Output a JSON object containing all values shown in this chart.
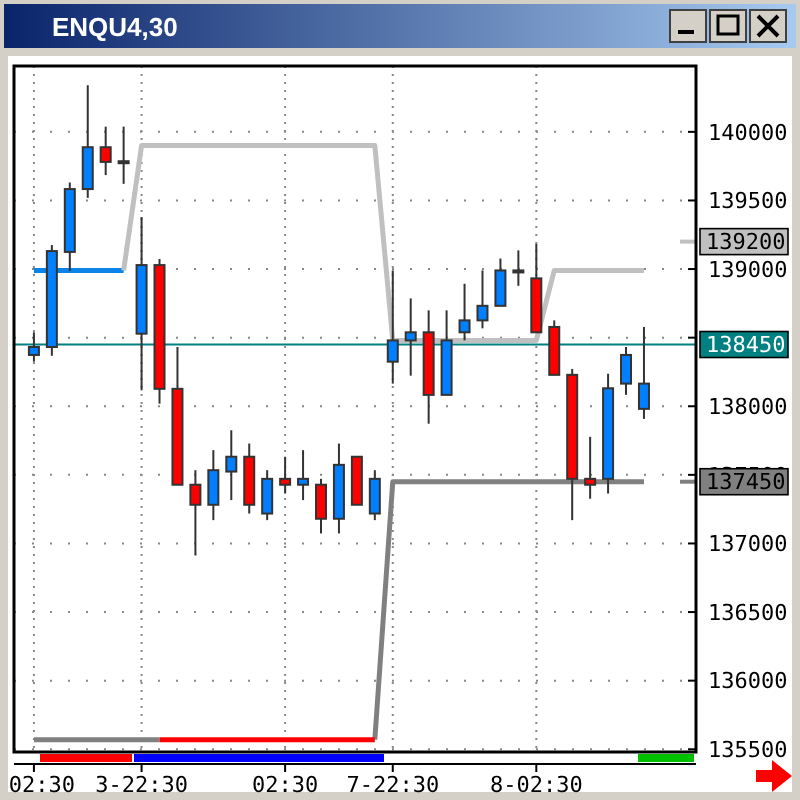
{
  "chart_data": {
    "type": "candlestick",
    "title": "ENQU4,30",
    "categories": [
      "02:30",
      null,
      null,
      null,
      null,
      null,
      "3-22:30",
      null,
      null,
      null,
      null,
      null,
      null,
      null,
      "02:30",
      null,
      null,
      null,
      null,
      null,
      "7-22:30",
      null,
      null,
      null,
      null,
      null,
      null,
      null,
      "8-02:30",
      null,
      null,
      null,
      null,
      null,
      null
    ],
    "ohlc": [
      [
        138374,
        138539,
        138325,
        138432
      ],
      [
        138432,
        139175,
        138368,
        139131
      ],
      [
        139125,
        139631,
        138986,
        139583
      ],
      [
        139583,
        140340,
        139519,
        139888
      ],
      [
        139888,
        140038,
        139685,
        139781
      ],
      [
        139786,
        140038,
        139621,
        139786
      ],
      [
        138529,
        139379,
        138116,
        139029
      ],
      [
        139029,
        139073,
        138019,
        138127
      ],
      [
        138127,
        138432,
        137428,
        137428
      ],
      [
        137428,
        137534,
        136912,
        137282
      ],
      [
        137282,
        137680,
        137170,
        137534
      ],
      [
        137524,
        137825,
        137316,
        137632
      ],
      [
        137632,
        137728,
        137218,
        137282
      ],
      [
        137218,
        137534,
        137170,
        137471
      ],
      [
        137471,
        137632,
        137364,
        137428
      ],
      [
        137428,
        137680,
        137316,
        137471
      ],
      [
        137428,
        137471,
        137073,
        137180
      ],
      [
        137180,
        137728,
        137073,
        137573
      ],
      [
        137632,
        137632,
        137282,
        137282
      ],
      [
        137218,
        137534,
        137170,
        137471
      ],
      [
        138325,
        138990,
        138165,
        138480
      ],
      [
        138480,
        138786,
        138223,
        138539
      ],
      [
        138539,
        138699,
        137873,
        138083
      ],
      [
        138083,
        138699,
        138083,
        138480
      ],
      [
        138539,
        138893,
        138480,
        138626
      ],
      [
        138626,
        138990,
        138568,
        138732
      ],
      [
        138732,
        139077,
        138732,
        138990
      ],
      [
        138990,
        139136,
        138878,
        138990
      ],
      [
        138932,
        139184,
        138539,
        138539
      ],
      [
        138578,
        138626,
        138229,
        138229
      ],
      [
        138229,
        138272,
        137170,
        137471
      ],
      [
        137471,
        137777,
        137326,
        137428
      ],
      [
        137471,
        138237,
        137364,
        138131
      ],
      [
        138165,
        138432,
        138083,
        138374
      ],
      [
        137981,
        138578,
        137908,
        138165
      ]
    ],
    "colors": [
      "#0080ff",
      "#0080ff",
      "#0080ff",
      "#0080ff",
      "#ff0000",
      "#0080ff",
      "#0080ff",
      "#ff0000",
      "#ff0000",
      "#ff0000",
      "#0080ff",
      "#0080ff",
      "#ff0000",
      "#0080ff",
      "#ff0000",
      "#0080ff",
      "#ff0000",
      "#0080ff",
      "#ff0000",
      "#0080ff",
      "#0080ff",
      "#0080ff",
      "#ff0000",
      "#0080ff",
      "#0080ff",
      "#0080ff",
      "#0080ff",
      "#0080ff",
      "#ff0000",
      "#ff0000",
      "#ff0000",
      "#ff0000",
      "#0080ff",
      "#0080ff",
      "#0080ff"
    ],
    "series": [
      {
        "type": "line",
        "color": "#0a84e8",
        "values": [
          138990,
          138990,
          138990,
          138990,
          138990,
          138990,
          null,
          null,
          null,
          null,
          null,
          null,
          null,
          null,
          null,
          null,
          null,
          null,
          null,
          null,
          null,
          null,
          null,
          null,
          null,
          null,
          null,
          null,
          null,
          null,
          null,
          null,
          null,
          null,
          null
        ]
      },
      {
        "type": "line",
        "color": "#c0c0c0",
        "values": [
          null,
          null,
          null,
          null,
          null,
          138990,
          139900,
          139900,
          139900,
          139900,
          139900,
          139900,
          139900,
          139900,
          139900,
          139900,
          139900,
          139900,
          139900,
          139900,
          138480,
          138480,
          138480,
          138480,
          138480,
          138480,
          138480,
          138480,
          138480,
          138990,
          138990,
          138990,
          138990,
          138990,
          138990
        ]
      },
      {
        "type": "line",
        "color": "#808080",
        "values": [
          135570,
          135570,
          135570,
          135570,
          135570,
          135570,
          135570,
          135570,
          null,
          null,
          null,
          null,
          null,
          null,
          null,
          null,
          null,
          null,
          null,
          135570,
          137450,
          137450,
          137450,
          137450,
          137450,
          137450,
          137450,
          137450,
          137450,
          137450,
          137450,
          137450,
          137450,
          137450,
          137450
        ]
      },
      {
        "type": "line",
        "color": "#ff0000",
        "values": [
          null,
          null,
          null,
          null,
          null,
          null,
          null,
          135570,
          135570,
          135570,
          135570,
          135570,
          135570,
          135570,
          135570,
          135570,
          135570,
          135570,
          135570,
          135570,
          null,
          null,
          null,
          null,
          null,
          null,
          null,
          null,
          null,
          null,
          null,
          null,
          null,
          null,
          null
        ]
      }
    ],
    "ylim": [
      135480,
      140480
    ],
    "yticks": [
      135500,
      136000,
      136500,
      137000,
      137500,
      138000,
      {
        "value": 138500,
        "label": null
      },
      139000,
      139500,
      140000
    ],
    "ref_lines": [
      {
        "axis": "y",
        "value": 139200,
        "label": "139200",
        "color": "#c0c0c0"
      },
      {
        "axis": "y",
        "value": 138450,
        "label": "138450",
        "color": "#008080",
        "line_style": "solid"
      },
      {
        "axis": "y",
        "value": 137450,
        "label": "137450",
        "color": "#808080"
      }
    ],
    "grid": true
  }
}
